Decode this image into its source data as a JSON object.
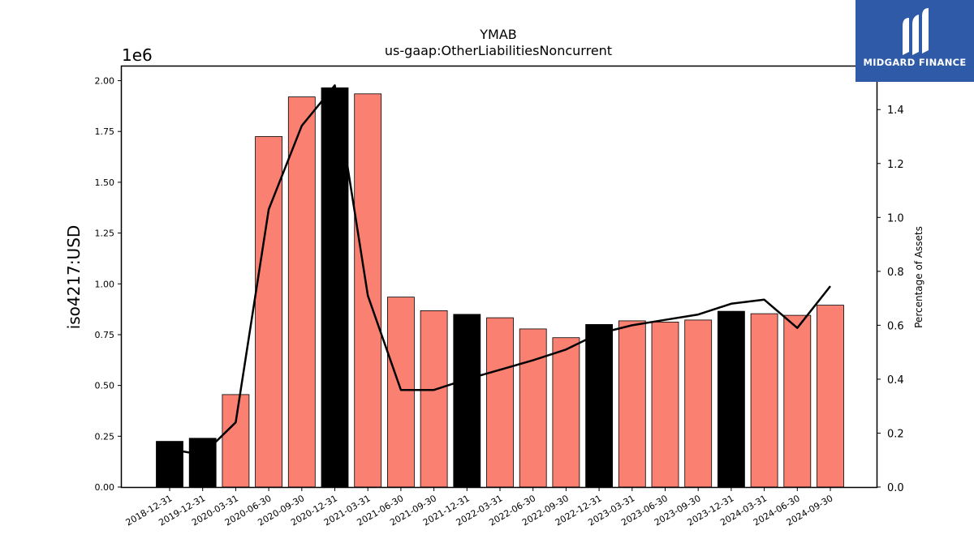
{
  "chart_data": {
    "type": "bar",
    "title": "YMAB",
    "subtitle": "us-gaap:OtherLiabilitiesNoncurrent",
    "ylabel": "iso4217:USD",
    "y2label": "Percentage of Assets",
    "y_offset_label": "1e6",
    "categories": [
      "2018-12-31",
      "2019-12-31",
      "2020-03-31",
      "2020-06-30",
      "2020-09-30",
      "2020-12-31",
      "2021-03-31",
      "2021-06-30",
      "2021-09-30",
      "2021-12-31",
      "2022-03-31",
      "2022-06-30",
      "2022-09-30",
      "2022-12-31",
      "2023-03-31",
      "2023-06-30",
      "2023-09-30",
      "2023-12-31",
      "2024-03-31",
      "2024-06-30",
      "2024-09-30"
    ],
    "values": [
      225000,
      240000,
      455000,
      1725000,
      1920000,
      1965000,
      1935000,
      935000,
      868000,
      850000,
      833000,
      778000,
      735000,
      800000,
      818000,
      812000,
      822000,
      865000,
      853000,
      845000,
      895000
    ],
    "bar_kind": [
      "annual",
      "annual",
      "quarter",
      "quarter",
      "quarter",
      "annual",
      "quarter",
      "quarter",
      "quarter",
      "annual",
      "quarter",
      "quarter",
      "quarter",
      "annual",
      "quarter",
      "quarter",
      "quarter",
      "annual",
      "quarter",
      "quarter",
      "quarter"
    ],
    "series": [
      {
        "name": "Percentage of Assets",
        "axis": "right",
        "type": "line",
        "values": [
          0.14,
          0.12,
          0.24,
          1.03,
          1.34,
          1.49,
          0.71,
          0.36,
          0.36,
          0.4,
          0.435,
          0.47,
          0.51,
          0.57,
          0.6,
          0.62,
          0.64,
          0.68,
          0.695,
          0.59,
          0.745
        ]
      }
    ],
    "ylim": [
      0,
      2070000
    ],
    "y2lim": [
      0,
      1.56
    ],
    "yticks": [
      "0.00",
      "0.25",
      "0.50",
      "0.75",
      "1.00",
      "1.25",
      "1.50",
      "1.75",
      "2.00"
    ],
    "y2ticks": [
      "0.0",
      "0.2",
      "0.4",
      "0.6",
      "0.8",
      "1.0",
      "1.2",
      "1.4"
    ],
    "colors": {
      "annual": "#000000",
      "quarter": "#fa8072",
      "line": "#000000"
    },
    "grid": false
  },
  "logo": {
    "text": "MIDGARD FINANCE",
    "icon": "midgard-logo-icon"
  }
}
